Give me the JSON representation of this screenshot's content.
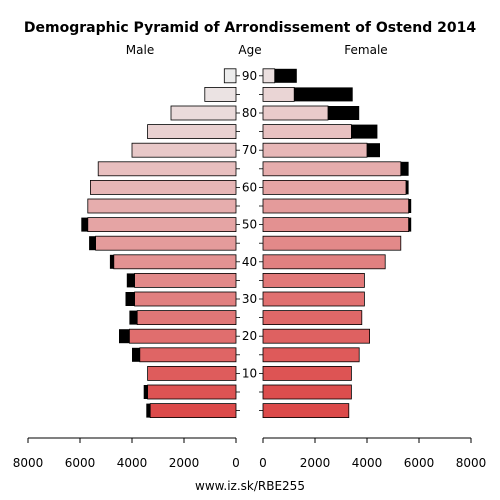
{
  "chart_data": {
    "type": "bar",
    "title": "Demographic Pyramid of Arrondissement of Ostend 2014",
    "left_label": "Male",
    "center_label": "Age",
    "right_label": "Female",
    "age_groups": [
      "0-4",
      "5-9",
      "10-14",
      "15-19",
      "20-24",
      "25-29",
      "30-34",
      "35-39",
      "40-44",
      "45-49",
      "50-54",
      "55-59",
      "60-64",
      "65-69",
      "70-74",
      "75-79",
      "80-84",
      "85-89",
      "90+"
    ],
    "age_ticks": [
      "10",
      "20",
      "30",
      "40",
      "50",
      "60",
      "70",
      "80",
      "90"
    ],
    "male": {
      "base": [
        3300,
        3400,
        3400,
        3700,
        4100,
        3800,
        3900,
        3900,
        4700,
        5400,
        5700,
        5700,
        5600,
        5300,
        4000,
        3400,
        2500,
        1200,
        450
      ],
      "extra": [
        150,
        150,
        0,
        300,
        400,
        300,
        350,
        300,
        150,
        250,
        250,
        0,
        0,
        0,
        0,
        0,
        0,
        0,
        0
      ]
    },
    "female": {
      "base": [
        3300,
        3400,
        3400,
        3700,
        4100,
        3800,
        3900,
        3900,
        4700,
        5300,
        5600,
        5600,
        5500,
        5300,
        4000,
        3400,
        2500,
        1200,
        450
      ],
      "extra": [
        0,
        0,
        0,
        0,
        0,
        0,
        0,
        0,
        0,
        0,
        100,
        100,
        100,
        300,
        500,
        1000,
        1200,
        2250,
        850
      ]
    },
    "male_axis_ticks": [
      "8000",
      "6000",
      "4000",
      "2000",
      "0"
    ],
    "female_axis_ticks": [
      "0",
      "2000",
      "4000",
      "6000",
      "8000"
    ],
    "xlim": [
      0,
      8000
    ],
    "colors": {
      "bottom": "#dc4a4a",
      "top": "#ececec",
      "extra": "#000000",
      "stroke": "#000000"
    }
  },
  "footer": {
    "source": "www.iz.sk/RBE255"
  }
}
